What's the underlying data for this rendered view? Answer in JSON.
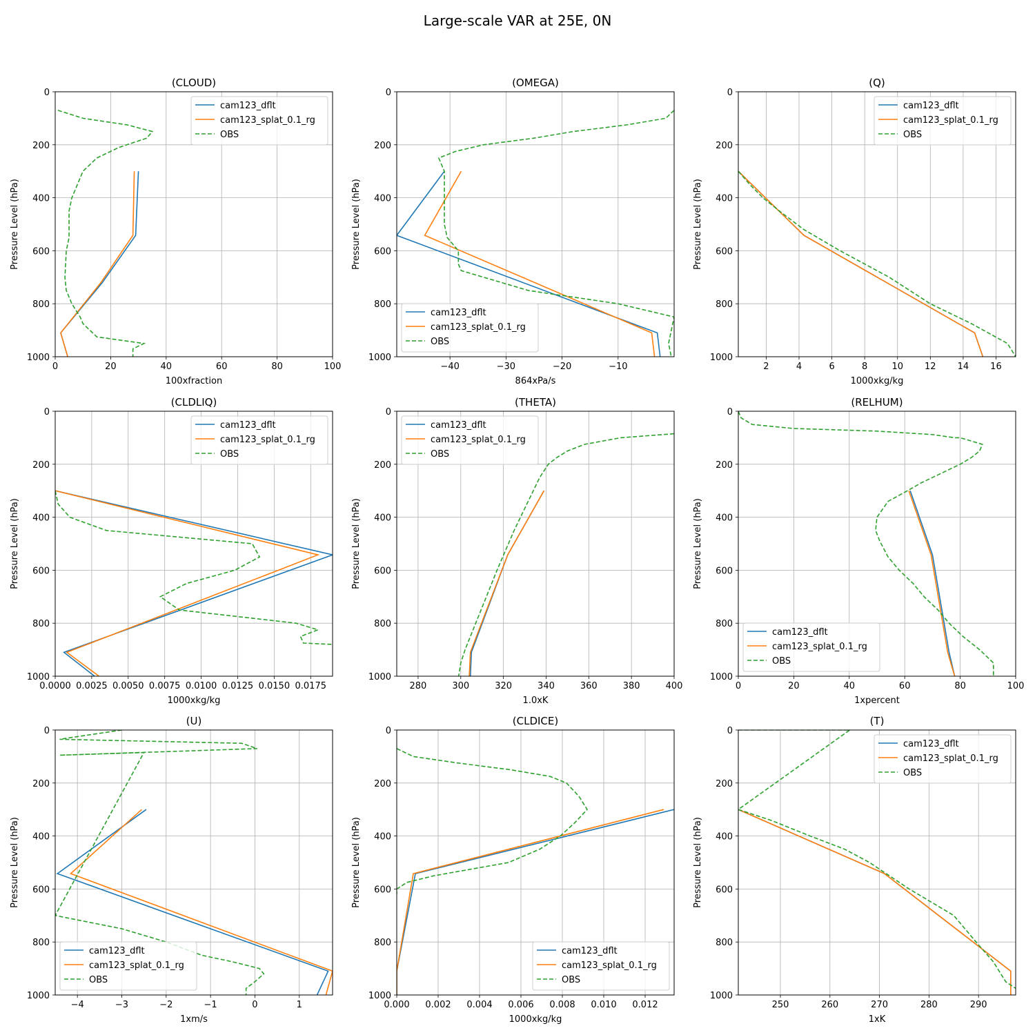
{
  "figure": {
    "title": "Large-scale VAR at 25E, 0N"
  },
  "colors": {
    "model1": "#1f77b4",
    "model2": "#ff7f0e",
    "obs": "#2ca02c"
  },
  "chart_data": [
    {
      "type": "line",
      "title": "(CLOUD)",
      "xlabel": "100xfraction",
      "ylabel": "Pressure Level (hPa)",
      "xlim": [
        0,
        100
      ],
      "ylim": [
        1000,
        0
      ],
      "xticks": [
        0,
        20,
        40,
        60,
        80,
        100
      ],
      "xtick_labels": [
        "0",
        "20",
        "40",
        "60",
        "80",
        "100"
      ],
      "yticks": [
        0,
        200,
        400,
        600,
        800,
        1000
      ],
      "ytick_labels": [
        "0",
        "200",
        "400",
        "600",
        "800",
        "1000"
      ],
      "legend": "upper right",
      "series": [
        {
          "name": "cam123_dflt",
          "x": [
            30,
            29,
            17,
            2,
            4.5
          ],
          "y": [
            300,
            542,
            720,
            910,
            1000
          ]
        },
        {
          "name": "cam123_splat_0.1_rg",
          "x": [
            28.5,
            28,
            16.5,
            2,
            4.5
          ],
          "y": [
            300,
            542,
            720,
            910,
            1000
          ]
        },
        {
          "name": "OBS",
          "x": [
            1,
            10,
            26,
            35,
            33,
            23,
            15,
            10,
            8,
            6,
            5,
            5,
            5,
            4,
            3.5,
            4,
            6,
            9,
            10,
            15,
            32,
            28,
            28
          ],
          "y": [
            70,
            100,
            125,
            150,
            175,
            210,
            250,
            300,
            350,
            400,
            450,
            500,
            550,
            600,
            700,
            750,
            800,
            850,
            875,
            925,
            950,
            970,
            1000
          ]
        }
      ]
    },
    {
      "type": "line",
      "title": "(OMEGA)",
      "xlabel": "864xPa/s",
      "ylabel": "Pressure Level (hPa)",
      "xlim": [
        -49.5,
        0
      ],
      "ylim": [
        1000,
        0
      ],
      "xticks": [
        -40,
        -30,
        -20,
        -10
      ],
      "xtick_labels": [
        "−40",
        "−30",
        "−20",
        "−10"
      ],
      "yticks": [
        0,
        200,
        400,
        600,
        800,
        1000
      ],
      "ytick_labels": [
        "0",
        "200",
        "400",
        "600",
        "800",
        "1000"
      ],
      "legend": "lower left",
      "series": [
        {
          "name": "cam123_dflt",
          "x": [
            -41,
            -49.5,
            -3,
            -2.5
          ],
          "y": [
            300,
            542,
            910,
            1000
          ]
        },
        {
          "name": "cam123_splat_0.1_rg",
          "x": [
            -38,
            -44.5,
            -4,
            -3.5
          ],
          "y": [
            300,
            542,
            910,
            1000
          ]
        },
        {
          "name": "OBS",
          "x": [
            0,
            -1.5,
            -8.5,
            -18,
            -25,
            -34,
            -39,
            -42,
            -41,
            -41,
            -41,
            -40.5,
            -38.5,
            -38.5,
            -38,
            -34,
            -26,
            -10,
            0,
            -1,
            -0.5
          ],
          "y": [
            70,
            100,
            125,
            150,
            175,
            200,
            225,
            250,
            300,
            400,
            500,
            550,
            600,
            650,
            675,
            700,
            750,
            800,
            850,
            950,
            1000
          ]
        }
      ]
    },
    {
      "type": "line",
      "title": "(Q)",
      "xlabel": "1000xkg/kg",
      "ylabel": "Pressure Level (hPa)",
      "xlim": [
        0.3,
        17.2
      ],
      "ylim": [
        1000,
        0
      ],
      "xticks": [
        2,
        4,
        6,
        8,
        10,
        12,
        14,
        16
      ],
      "xtick_labels": [
        "2",
        "4",
        "6",
        "8",
        "10",
        "12",
        "14",
        "16"
      ],
      "yticks": [
        0,
        200,
        400,
        600,
        800,
        1000
      ],
      "ytick_labels": [
        "0",
        "200",
        "400",
        "600",
        "800",
        "1000"
      ],
      "legend": "upper right",
      "series": [
        {
          "name": "cam123_dflt",
          "x": [
            0.3,
            4.3,
            14.7,
            15.2
          ],
          "y": [
            300,
            542,
            910,
            1000
          ]
        },
        {
          "name": "cam123_splat_0.1_rg",
          "x": [
            0.3,
            4.3,
            14.7,
            15.2
          ],
          "y": [
            300,
            542,
            910,
            1000
          ]
        },
        {
          "name": "OBS",
          "x": [
            0.3,
            1,
            1.8,
            2.8,
            4.3,
            6.5,
            9.5,
            12,
            14.5,
            16.7,
            17.2
          ],
          "y": [
            300,
            350,
            400,
            450,
            520,
            600,
            700,
            800,
            875,
            950,
            1000
          ]
        }
      ]
    },
    {
      "type": "line",
      "title": "(CLDLIQ)",
      "xlabel": "1000xkg/kg",
      "ylabel": "Pressure Level (hPa)",
      "xlim": [
        0,
        0.019
      ],
      "ylim": [
        1000,
        0
      ],
      "xticks": [
        0,
        0.0025,
        0.005,
        0.0075,
        0.01,
        0.0125,
        0.015,
        0.0175
      ],
      "xtick_labels": [
        "0.0000",
        "0.0025",
        "0.0050",
        "0.0075",
        "0.0100",
        "0.0125",
        "0.0150",
        "0.0175"
      ],
      "yticks": [
        0,
        200,
        400,
        600,
        800,
        1000
      ],
      "ytick_labels": [
        "0",
        "200",
        "400",
        "600",
        "800",
        "1000"
      ],
      "legend": "upper right",
      "series": [
        {
          "name": "cam123_dflt",
          "x": [
            0,
            0.019,
            0.0006,
            0.0027
          ],
          "y": [
            300,
            542,
            910,
            1000
          ]
        },
        {
          "name": "cam123_splat_0.1_rg",
          "x": [
            0,
            0.018,
            0.0008,
            0.003
          ],
          "y": [
            300,
            542,
            910,
            1000
          ]
        },
        {
          "name": "OBS",
          "x": [
            0,
            0.0002,
            0.001,
            0.0035,
            0.0135,
            0.014,
            0.0123,
            0.009,
            0.0072,
            0.0085,
            0.0125,
            0.0165,
            0.018,
            0.0168,
            0.017,
            0.019
          ],
          "y": [
            300,
            350,
            400,
            450,
            500,
            550,
            600,
            650,
            700,
            750,
            775,
            800,
            825,
            850,
            875,
            880
          ]
        }
      ]
    },
    {
      "type": "line",
      "title": "(THETA)",
      "xlabel": "1.0xK",
      "ylabel": "Pressure Level (hPa)",
      "xlim": [
        270,
        400
      ],
      "ylim": [
        1000,
        0
      ],
      "xticks": [
        280,
        300,
        320,
        340,
        360,
        380,
        400
      ],
      "xtick_labels": [
        "280",
        "300",
        "320",
        "340",
        "360",
        "380",
        "400"
      ],
      "yticks": [
        0,
        200,
        400,
        600,
        800,
        1000
      ],
      "ytick_labels": [
        "0",
        "200",
        "400",
        "600",
        "800",
        "1000"
      ],
      "legend": "upper left",
      "series": [
        {
          "name": "cam123_dflt",
          "x": [
            339,
            322,
            305,
            304.5
          ],
          "y": [
            300,
            542,
            910,
            1000
          ]
        },
        {
          "name": "cam123_splat_0.1_rg",
          "x": [
            339,
            322,
            304.5,
            304
          ],
          "y": [
            300,
            542,
            910,
            1000
          ]
        },
        {
          "name": "OBS",
          "x": [
            400,
            375,
            358,
            350,
            345,
            341,
            337,
            331,
            325,
            317,
            312,
            307,
            302,
            300,
            299
          ],
          "y": [
            85,
            100,
            125,
            150,
            175,
            200,
            250,
            350,
            450,
            600,
            700,
            800,
            900,
            950,
            1000
          ]
        }
      ]
    },
    {
      "type": "line",
      "title": "(RELHUM)",
      "xlabel": "1xpercent",
      "ylabel": "Pressure Level (hPa)",
      "xlim": [
        0,
        100
      ],
      "ylim": [
        1000,
        0
      ],
      "xticks": [
        0,
        20,
        40,
        60,
        80,
        100
      ],
      "xtick_labels": [
        "0",
        "20",
        "40",
        "60",
        "80",
        "100"
      ],
      "yticks": [
        0,
        200,
        400,
        600,
        800,
        1000
      ],
      "ytick_labels": [
        "0",
        "200",
        "400",
        "600",
        "800",
        "1000"
      ],
      "legend": "lower left",
      "series": [
        {
          "name": "cam123_dflt",
          "x": [
            62,
            70,
            76,
            78
          ],
          "y": [
            300,
            542,
            910,
            1000
          ]
        },
        {
          "name": "cam123_splat_0.1_rg",
          "x": [
            61.5,
            69.5,
            75.5,
            78
          ],
          "y": [
            300,
            542,
            910,
            1000
          ]
        },
        {
          "name": "OBS",
          "x": [
            0,
            1,
            5,
            20,
            50,
            70,
            78,
            80,
            88,
            87,
            84,
            80,
            66,
            61,
            54,
            50,
            49.5,
            51,
            54,
            58,
            63,
            67,
            72,
            76,
            81,
            87,
            92,
            92
          ],
          "y": [
            0,
            25,
            50,
            65,
            75,
            88,
            100,
            100,
            125,
            150,
            175,
            200,
            270,
            300,
            340,
            400,
            450,
            490,
            550,
            600,
            650,
            700,
            750,
            800,
            850,
            900,
            950,
            1000
          ]
        }
      ]
    },
    {
      "type": "line",
      "title": "(U)",
      "xlabel": "1xm/s",
      "ylabel": "Pressure Level (hPa)",
      "xlim": [
        -4.5,
        1.75
      ],
      "ylim": [
        1000,
        0
      ],
      "xticks": [
        -4,
        -3,
        -2,
        -1,
        0,
        1
      ],
      "xtick_labels": [
        "−4",
        "−3",
        "−2",
        "−1",
        "0",
        "1"
      ],
      "yticks": [
        0,
        200,
        400,
        600,
        800,
        1000
      ],
      "ytick_labels": [
        "0",
        "200",
        "400",
        "600",
        "800",
        "1000"
      ],
      "legend": "lower left",
      "series": [
        {
          "name": "cam123_dflt",
          "x": [
            -2.45,
            -4.45,
            1.65,
            1.4
          ],
          "y": [
            300,
            542,
            910,
            1000
          ]
        },
        {
          "name": "cam123_splat_0.1_rg",
          "x": [
            -2.55,
            -4.15,
            1.75,
            1.6
          ],
          "y": [
            300,
            542,
            910,
            1000
          ]
        },
        {
          "name": "OBS",
          "x": [
            -3,
            -4.4,
            -0.3,
            0.05,
            -4.4,
            -2.5,
            -4.5,
            -3,
            -2,
            -1.2,
            -0.5,
            0.1,
            0.2,
            0,
            -0.2,
            -0.2,
            -0.2
          ],
          "y": [
            0,
            35,
            50,
            70,
            95,
            85,
            700,
            750,
            800,
            850,
            875,
            900,
            920,
            950,
            975,
            1000,
            1000
          ]
        }
      ]
    },
    {
      "type": "line",
      "title": "(CLDICE)",
      "xlabel": "1000xkg/kg",
      "ylabel": "Pressure Level (hPa)",
      "xlim": [
        0,
        0.0134
      ],
      "ylim": [
        1000,
        0
      ],
      "xticks": [
        0,
        0.002,
        0.004,
        0.006,
        0.008,
        0.01,
        0.012
      ],
      "xtick_labels": [
        "0.000",
        "0.002",
        "0.004",
        "0.006",
        "0.008",
        "0.010",
        "0.012"
      ],
      "yticks": [
        0,
        200,
        400,
        600,
        800,
        1000
      ],
      "ytick_labels": [
        "0",
        "200",
        "400",
        "600",
        "800",
        "1000"
      ],
      "legend": "lower right",
      "series": [
        {
          "name": "cam123_dflt",
          "x": [
            0.0134,
            0.0009,
            0,
            0
          ],
          "y": [
            300,
            542,
            910,
            1000
          ]
        },
        {
          "name": "cam123_splat_0.1_rg",
          "x": [
            0.0129,
            0.0008,
            0,
            0
          ],
          "y": [
            300,
            542,
            910,
            1000
          ]
        },
        {
          "name": "OBS",
          "x": [
            0,
            0.0008,
            0.003,
            0.0055,
            0.0074,
            0.0082,
            0.0088,
            0.0092,
            0.0086,
            0.0079,
            0.0069,
            0.0054,
            0.0018,
            0.0005,
            0,
            0
          ],
          "y": [
            70,
            100,
            125,
            150,
            175,
            200,
            250,
            300,
            350,
            400,
            450,
            500,
            550,
            575,
            600,
            620
          ]
        }
      ]
    },
    {
      "type": "line",
      "title": "(T)",
      "xlabel": "1xK",
      "ylabel": "Pressure Level (hPa)",
      "xlim": [
        241.5,
        297.5
      ],
      "ylim": [
        1000,
        0
      ],
      "xticks": [
        250,
        260,
        270,
        280,
        290
      ],
      "xtick_labels": [
        "250",
        "260",
        "270",
        "280",
        "290"
      ],
      "yticks": [
        0,
        200,
        400,
        600,
        800,
        1000
      ],
      "ytick_labels": [
        "0",
        "200",
        "400",
        "600",
        "800",
        "1000"
      ],
      "legend": "upper right",
      "series": [
        {
          "name": "cam123_dflt",
          "x": [
            241.5,
            271,
            296.5,
            296.5
          ],
          "y": [
            300,
            542,
            910,
            1000
          ]
        },
        {
          "name": "cam123_splat_0.1_rg",
          "x": [
            241.5,
            271,
            296.5,
            296.5
          ],
          "y": [
            300,
            542,
            910,
            1000
          ]
        },
        {
          "name": "OBS",
          "x": [
            241.5,
            264,
            241.5,
            248,
            256,
            263,
            268,
            272,
            276,
            280.5,
            285,
            289.5,
            293,
            295.5,
            297.5
          ],
          "y": [
            0,
            0,
            300,
            340,
            400,
            450,
            500,
            550,
            600,
            650,
            700,
            800,
            875,
            950,
            975
          ]
        }
      ]
    }
  ]
}
